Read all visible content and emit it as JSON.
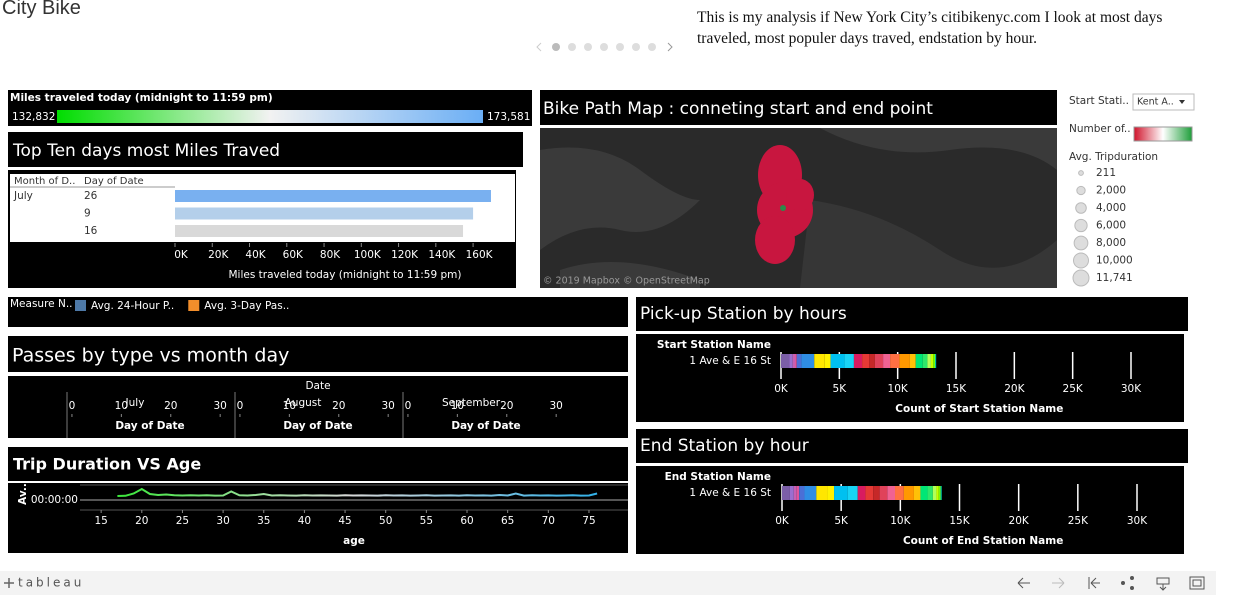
{
  "header": {
    "title": "City Bike",
    "description": "This is my analysis if New York City’s citibikenyc.com I look at most days traveled, most populer days traved, endstation by hour."
  },
  "miles_today": {
    "title": "Miles traveled today (midnight to 11:59 pm)",
    "min_label": "132,832",
    "max_label": "173,581",
    "colors": [
      "#00dd00",
      "#f2f2f2",
      "#6aaef5"
    ]
  },
  "top_days": {
    "title": "Top Ten days most Miles Traved",
    "columns": [
      "Month of D..",
      "Day of Date"
    ],
    "rows": [
      {
        "month": "July",
        "day": "26",
        "value": 169600,
        "color": "#79b0f0"
      },
      {
        "month": null,
        "day": "9",
        "value": 160000,
        "color": "#b4cfea"
      },
      {
        "month": null,
        "day": "16",
        "value": 154600,
        "color": "#d9d9d9"
      }
    ],
    "xlim": [
      0,
      182500
    ],
    "xticks": [
      {
        "value": 0,
        "label": "0K"
      },
      {
        "value": 20000,
        "label": "20K"
      },
      {
        "value": 40000,
        "label": "40K"
      },
      {
        "value": 60000,
        "label": "60K"
      },
      {
        "value": 80000,
        "label": "80K"
      },
      {
        "value": 100000,
        "label": "100K"
      },
      {
        "value": 120000,
        "label": "120K"
      },
      {
        "value": 140000,
        "label": "140K"
      },
      {
        "value": 160000,
        "label": "160K"
      }
    ],
    "xlabel": "Miles traveled today (midnight to 11:59 pm)"
  },
  "map": {
    "title": "Bike Path Map : conneting start and end point",
    "attribution": "© 2019 Mapbox © OpenStreetMap"
  },
  "filters": {
    "start_station_label": "Start Stati..",
    "start_station_value": "Kent A..",
    "color_label": "Number of..",
    "color_colors": [
      "#d0142c",
      "#ffffff",
      "#1e9e3a"
    ],
    "size_label": "Avg. Tripduration",
    "size_items": [
      {
        "value": 211,
        "label": "211"
      },
      {
        "value": 2000,
        "label": "2,000"
      },
      {
        "value": 4000,
        "label": "4,000"
      },
      {
        "value": 6000,
        "label": "6,000"
      },
      {
        "value": 8000,
        "label": "8,000"
      },
      {
        "value": 10000,
        "label": "10,000"
      },
      {
        "value": 11741,
        "label": "11,741"
      }
    ]
  },
  "measure_legend": {
    "title": "Measure N..",
    "items": [
      {
        "name": "Avg. 24-Hour P..",
        "color": "#4e79a7"
      },
      {
        "name": "Avg. 3-Day Pas..",
        "color": "#f28e2b"
      }
    ]
  },
  "passes": {
    "title": "Passes by type vs month day",
    "column_header": "Date",
    "months": [
      "July",
      "August",
      "September"
    ],
    "xlim": [
      -1,
      33
    ],
    "xticks": [
      0,
      10,
      20,
      30
    ],
    "xlabel": "Day of Date"
  },
  "trip": {
    "title": "Trip Duration VS Age",
    "ylabel": "Av..",
    "xlabel": "age",
    "x": [
      17,
      18,
      19,
      20,
      21,
      22,
      23,
      24,
      25,
      26,
      27,
      28,
      29,
      30,
      31,
      32,
      33,
      34,
      35,
      36,
      37,
      38,
      39,
      40,
      41,
      42,
      43,
      44,
      45,
      46,
      47,
      48,
      49,
      50,
      51,
      52,
      53,
      54,
      55,
      56,
      57,
      58,
      59,
      60,
      61,
      62,
      63,
      64,
      65,
      66,
      67,
      68,
      69,
      70,
      71,
      72,
      73,
      74,
      75,
      76
    ],
    "values": [
      800,
      850,
      1300,
      2200,
      1200,
      1000,
      1100,
      950,
      900,
      950,
      900,
      950,
      880,
      900,
      1700,
      950,
      900,
      1000,
      1200,
      900,
      950,
      900,
      880,
      950,
      900,
      920,
      900,
      880,
      950,
      900,
      920,
      900,
      880,
      950,
      900,
      920,
      880,
      900,
      950,
      880,
      900,
      920,
      880,
      950,
      900,
      920,
      880,
      1000,
      900,
      1300,
      880,
      950,
      900,
      920,
      880,
      900,
      950,
      880,
      900,
      1300
    ],
    "colors": [
      "#2ee82e",
      "#d8d8d8",
      "#2fb0e8"
    ],
    "xlim": [
      12.4,
      79.8
    ],
    "xticks": [
      15,
      20,
      25,
      30,
      35,
      40,
      45,
      50,
      55,
      60,
      65,
      70,
      75
    ],
    "ylim": [
      -2000,
      3000
    ],
    "yticks": [
      {
        "value": 0,
        "label": "00:00:00"
      }
    ]
  },
  "pickup": {
    "title": "Pick-up Station by hours",
    "row_header": "Start Station Name",
    "station": "1 Ave & E 16 St",
    "segments": [
      700,
      300,
      200,
      150,
      400,
      1100,
      900,
      500,
      1200,
      800,
      700,
      600,
      500,
      700,
      600,
      800,
      900,
      500,
      600,
      400,
      300,
      200,
      150,
      100
    ],
    "colors": [
      "#7b5ea7",
      "#9a6fd0",
      "#c85fb3",
      "#e0559a",
      "#4b6fd6",
      "#2f8de4",
      "#ffe600",
      "#fff200",
      "#00c0f0",
      "#19d3f5",
      "#d81b60",
      "#e53935",
      "#c62828",
      "#e0425a",
      "#f06292",
      "#ff7043",
      "#ff9800",
      "#ffc107",
      "#00e676",
      "#2ee86a",
      "#b2ff59",
      "#c6ff00",
      "#76ff03",
      "#00bfa5"
    ],
    "xlim": [
      0,
      34800
    ],
    "xticks": [
      {
        "value": 0,
        "label": "0K"
      },
      {
        "value": 5000,
        "label": "5K"
      },
      {
        "value": 10000,
        "label": "10K"
      },
      {
        "value": 15000,
        "label": "15K"
      },
      {
        "value": 20000,
        "label": "20K"
      },
      {
        "value": 25000,
        "label": "25K"
      },
      {
        "value": 30000,
        "label": "30K"
      }
    ],
    "xlabel": "Count of Start Station Name"
  },
  "dropoff": {
    "title": "End Station by hour",
    "row_header": "End Station Name",
    "station": "1 Ave & E 16 St",
    "segments": [
      650,
      350,
      250,
      200,
      450,
      1000,
      950,
      550,
      1150,
      850,
      650,
      650,
      550,
      650,
      650,
      750,
      850,
      550,
      600,
      450,
      300,
      200,
      150,
      100
    ],
    "colors": [
      "#7b5ea7",
      "#9a6fd0",
      "#c85fb3",
      "#e0559a",
      "#4b6fd6",
      "#2f8de4",
      "#ffe600",
      "#fff200",
      "#00c0f0",
      "#19d3f5",
      "#d81b60",
      "#e53935",
      "#c62828",
      "#e0425a",
      "#f06292",
      "#ff7043",
      "#ff9800",
      "#ffc107",
      "#00e676",
      "#2ee86a",
      "#b2ff59",
      "#c6ff00",
      "#76ff03",
      "#00bfa5"
    ],
    "xlim": [
      0,
      34200
    ],
    "xticks": [
      {
        "value": 0,
        "label": "0K"
      },
      {
        "value": 5000,
        "label": "5K"
      },
      {
        "value": 10000,
        "label": "10K"
      },
      {
        "value": 15000,
        "label": "15K"
      },
      {
        "value": 20000,
        "label": "20K"
      },
      {
        "value": 25000,
        "label": "25K"
      },
      {
        "value": 30000,
        "label": "30K"
      }
    ],
    "xlabel": "Count of End Station Name"
  },
  "footer": {
    "logo": "tableau"
  }
}
